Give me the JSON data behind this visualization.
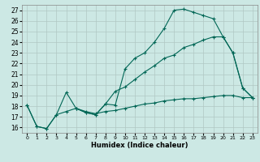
{
  "xlabel": "Humidex (Indice chaleur)",
  "background_color": "#cce8e4",
  "grid_color": "#b0c8c4",
  "line_color": "#006655",
  "xlim": [
    -0.5,
    23.5
  ],
  "ylim": [
    15.5,
    27.5
  ],
  "xticks": [
    0,
    1,
    2,
    3,
    4,
    5,
    6,
    7,
    8,
    9,
    10,
    11,
    12,
    13,
    14,
    15,
    16,
    17,
    18,
    19,
    20,
    21,
    22,
    23
  ],
  "yticks": [
    16,
    17,
    18,
    19,
    20,
    21,
    22,
    23,
    24,
    25,
    26,
    27
  ],
  "series": [
    {
      "x": [
        0,
        1,
        2,
        3,
        4,
        5,
        6,
        7,
        8,
        9,
        10,
        11,
        12,
        13,
        14,
        15,
        16,
        17,
        18,
        19,
        20,
        21,
        22,
        23
      ],
      "y": [
        18.1,
        16.1,
        15.9,
        17.2,
        19.3,
        17.8,
        17.4,
        17.2,
        18.2,
        18.1,
        21.5,
        22.5,
        23.0,
        24.0,
        25.3,
        27.0,
        27.1,
        26.8,
        26.5,
        26.2,
        24.5,
        23.0,
        19.7,
        18.8
      ]
    },
    {
      "x": [
        5,
        6,
        7,
        8,
        9,
        10,
        11,
        12,
        13,
        14,
        15,
        16,
        17,
        18,
        19,
        20,
        21,
        22,
        23
      ],
      "y": [
        17.8,
        17.4,
        17.2,
        18.2,
        19.4,
        19.8,
        20.5,
        21.2,
        21.8,
        22.5,
        22.8,
        23.5,
        23.8,
        24.2,
        24.5,
        24.5,
        23.0,
        19.7,
        18.8
      ]
    },
    {
      "x": [
        0,
        1,
        2,
        3,
        4,
        5,
        6,
        7,
        8,
        9,
        10,
        11,
        12,
        13,
        14,
        15,
        16,
        17,
        18,
        19,
        20,
        21,
        22,
        23
      ],
      "y": [
        18.1,
        16.1,
        15.9,
        17.2,
        17.5,
        17.8,
        17.5,
        17.3,
        17.5,
        17.6,
        17.8,
        18.0,
        18.2,
        18.3,
        18.5,
        18.6,
        18.7,
        18.7,
        18.8,
        18.9,
        19.0,
        19.0,
        18.8,
        18.8
      ]
    }
  ]
}
